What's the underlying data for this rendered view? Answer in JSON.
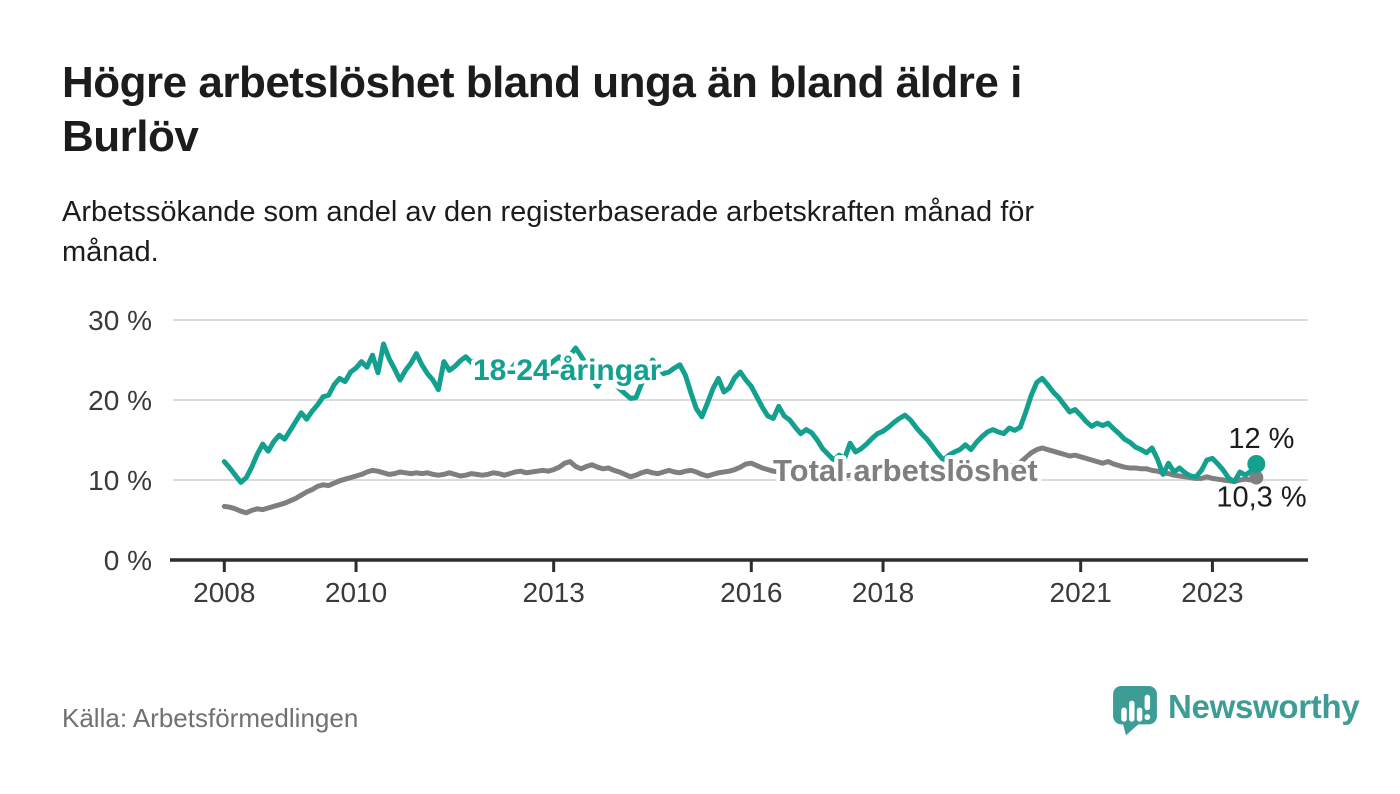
{
  "header": {
    "title": "Högre arbetslöshet bland unga än bland äldre i Burlöv",
    "title_lines": [
      "Högre arbetslöshet bland unga än bland äldre i",
      "Burlöv"
    ],
    "subtitle": "Arbetssökande som andel av den registerbaserade arbetskraften månad för månad.",
    "subtitle_lines": [
      "Arbetssökande som andel av den registerbaserade arbetskraften månad för",
      "månad."
    ]
  },
  "footer": {
    "source": "Källa: Arbetsförmedlingen",
    "brand": "Newsworthy"
  },
  "colors": {
    "accent_teal": "#14A08E",
    "total_gray": "#7F7F7F",
    "brand_teal": "#3E9C96",
    "title": "#1C1C1C",
    "axis_text": "#3A3A3A",
    "grid": "#DBDBDB",
    "axis_line": "#2D2D2D",
    "source_text": "#717175"
  },
  "chart_data": {
    "type": "line",
    "title": "Högre arbetslöshet bland unga än bland äldre i Burlöv",
    "xlabel": "",
    "ylabel": "",
    "unit": "%",
    "frequency": "monthly",
    "x_start": "2008-01",
    "x_end": "2023-09",
    "ylim": [
      0,
      32
    ],
    "grid": true,
    "legend_position": "inline-labels",
    "y_ticks": [
      {
        "v": 30,
        "label": "30 %"
      },
      {
        "v": 20,
        "label": "20 %"
      },
      {
        "v": 10,
        "label": "10 %"
      },
      {
        "v": 0,
        "label": "0 %"
      }
    ],
    "x_ticks": [
      {
        "v": 2008,
        "label": "2008"
      },
      {
        "v": 2010,
        "label": "2010"
      },
      {
        "v": 2013,
        "label": "2013"
      },
      {
        "v": 2016,
        "label": "2016"
      },
      {
        "v": 2018,
        "label": "2018"
      },
      {
        "v": 2021,
        "label": "2021"
      },
      {
        "v": 2023,
        "label": "2023"
      }
    ],
    "series": [
      {
        "name": "18-24-åringar",
        "color": "#14A08E",
        "end_label": "12 %",
        "end_value": 12.0,
        "values": [
          12.3,
          11.5,
          10.6,
          9.7,
          10.3,
          11.6,
          13.2,
          14.5,
          13.6,
          14.8,
          15.6,
          15.1,
          16.2,
          17.3,
          18.4,
          17.6,
          18.6,
          19.4,
          20.4,
          20.6,
          21.9,
          22.7,
          22.3,
          23.5,
          24.0,
          24.8,
          24.1,
          25.6,
          23.4,
          27.0,
          25.2,
          23.9,
          22.5,
          23.7,
          24.6,
          25.8,
          24.4,
          23.3,
          22.5,
          21.3,
          24.8,
          23.7,
          24.2,
          24.9,
          25.4,
          24.7,
          25.0,
          24.3,
          23.6,
          24.4,
          25.1,
          24.3,
          23.7,
          24.5,
          25.0,
          24.2,
          23.5,
          24.1,
          24.8,
          24.2,
          24.9,
          25.4,
          24.7,
          25.6,
          26.5,
          25.5,
          24.3,
          22.6,
          21.7,
          22.9,
          23.5,
          22.3,
          21.4,
          20.8,
          20.2,
          20.3,
          22.0,
          23.2,
          25.0,
          24.2,
          23.3,
          23.5,
          24.0,
          24.4,
          23.1,
          20.9,
          18.9,
          17.9,
          19.6,
          21.4,
          22.7,
          21.0,
          21.5,
          22.8,
          23.5,
          22.5,
          21.7,
          20.4,
          19.1,
          18.0,
          17.7,
          19.2,
          18.0,
          17.5,
          16.6,
          15.8,
          16.3,
          15.9,
          15.0,
          13.9,
          13.2,
          12.5,
          13.1,
          12.7,
          14.6,
          13.5,
          13.9,
          14.5,
          15.2,
          15.8,
          16.1,
          16.6,
          17.2,
          17.7,
          18.1,
          17.5,
          16.6,
          15.8,
          15.1,
          14.2,
          13.3,
          12.5,
          13.1,
          13.5,
          13.8,
          14.4,
          13.8,
          14.7,
          15.4,
          16.0,
          16.3,
          16.0,
          15.8,
          16.5,
          16.2,
          16.6,
          18.5,
          20.6,
          22.2,
          22.7,
          21.9,
          21.0,
          20.3,
          19.4,
          18.5,
          18.8,
          18.1,
          17.3,
          16.7,
          17.1,
          16.8,
          17.1,
          16.4,
          15.8,
          15.1,
          14.7,
          14.1,
          13.8,
          13.4,
          14.0,
          12.6,
          10.7,
          12.1,
          11.0,
          11.5,
          10.9,
          10.5,
          10.4,
          11.2,
          12.5,
          12.7,
          12.0,
          11.2,
          10.2,
          9.8,
          11.0,
          10.6,
          11.1,
          12.0
        ]
      },
      {
        "name": "Total arbetslöshet",
        "color": "#7F7F7F",
        "end_label": "10,3 %",
        "end_value": 10.3,
        "values": [
          6.7,
          6.6,
          6.4,
          6.1,
          5.9,
          6.2,
          6.4,
          6.3,
          6.5,
          6.7,
          6.9,
          7.1,
          7.4,
          7.7,
          8.1,
          8.5,
          8.8,
          9.2,
          9.4,
          9.3,
          9.6,
          9.9,
          10.1,
          10.3,
          10.5,
          10.7,
          11.0,
          11.2,
          11.1,
          10.9,
          10.7,
          10.8,
          11.0,
          10.9,
          10.8,
          10.9,
          10.8,
          10.9,
          10.7,
          10.6,
          10.7,
          10.9,
          10.7,
          10.5,
          10.6,
          10.8,
          10.7,
          10.6,
          10.7,
          10.9,
          10.8,
          10.6,
          10.8,
          11.0,
          11.1,
          10.9,
          11.0,
          11.1,
          11.2,
          11.1,
          11.3,
          11.6,
          12.1,
          12.3,
          11.7,
          11.4,
          11.7,
          11.9,
          11.6,
          11.4,
          11.5,
          11.2,
          11.0,
          10.7,
          10.4,
          10.6,
          10.9,
          11.1,
          10.9,
          10.8,
          11.0,
          11.2,
          11.0,
          10.9,
          11.1,
          11.2,
          11.0,
          10.7,
          10.5,
          10.7,
          10.9,
          11.0,
          11.1,
          11.3,
          11.6,
          12.0,
          12.1,
          11.8,
          11.5,
          11.3,
          11.1,
          11.0,
          10.9,
          10.8,
          10.9,
          11.0,
          10.9,
          10.8,
          10.8,
          10.7,
          10.6,
          10.5,
          10.4,
          10.5,
          10.6,
          10.5,
          10.6,
          10.7,
          10.8,
          10.9,
          10.9,
          10.8,
          10.7,
          10.6,
          10.5,
          10.4,
          10.3,
          10.2,
          10.1,
          10.2,
          10.3,
          10.4,
          10.5,
          10.6,
          10.7,
          10.8,
          10.9,
          11.0,
          11.1,
          11.2,
          11.3,
          11.4,
          11.5,
          11.7,
          11.9,
          12.2,
          12.8,
          13.4,
          13.8,
          14.0,
          13.8,
          13.6,
          13.4,
          13.2,
          13.0,
          13.1,
          12.9,
          12.7,
          12.5,
          12.3,
          12.1,
          12.3,
          12.0,
          11.8,
          11.6,
          11.5,
          11.5,
          11.4,
          11.4,
          11.2,
          11.1,
          10.9,
          10.8,
          10.6,
          10.5,
          10.4,
          10.3,
          10.2,
          10.2,
          10.4,
          10.2,
          10.1,
          10.0,
          9.9,
          9.8,
          10.0,
          10.1,
          10.0,
          10.3
        ]
      }
    ]
  }
}
